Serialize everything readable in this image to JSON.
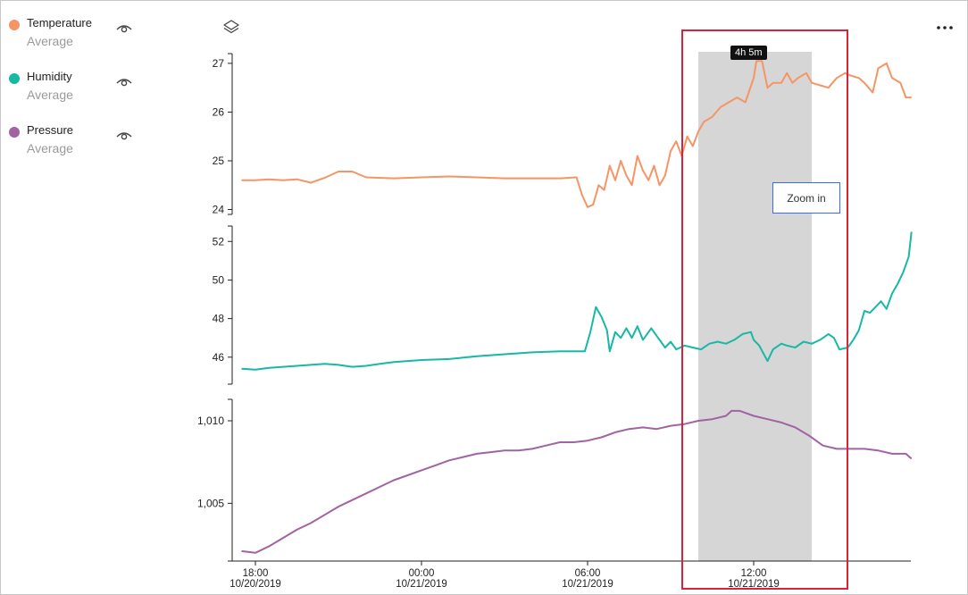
{
  "legend": {
    "items": [
      {
        "name": "Temperature",
        "sub": "Average",
        "color": "#f59565"
      },
      {
        "name": "Humidity",
        "sub": "Average",
        "color": "#17b8a6"
      },
      {
        "name": "Pressure",
        "sub": "Average",
        "color": "#a163a3"
      }
    ]
  },
  "toolbar": {
    "layers_icon": "layers-icon",
    "more_icon": "more-icon"
  },
  "selection": {
    "duration_badge": "4h 5m",
    "zoom_button": "Zoom in"
  },
  "colors": {
    "selection_fill": "#d6d6d6",
    "highlight_border": "#d9233b",
    "zoom_border": "#3a6fd8"
  },
  "chart_data": {
    "type": "line",
    "x_ticks": [
      {
        "time": "18:00",
        "date": "10/20/2019",
        "hours": 0
      },
      {
        "time": "00:00",
        "date": "10/21/2019",
        "hours": 6
      },
      {
        "time": "06:00",
        "date": "10/21/2019",
        "hours": 12
      },
      {
        "time": "12:00",
        "date": "10/21/2019",
        "hours": 18
      }
    ],
    "x_range_hours": [
      -0.5,
      23.7
    ],
    "selection_hours": [
      16.0,
      20.1
    ],
    "series": [
      {
        "name": "Temperature",
        "color": "#f59565",
        "ylim": [
          23.9,
          27.2
        ],
        "ticks": [
          24,
          25,
          26,
          27
        ],
        "tick_labels": [
          "24",
          "25",
          "26",
          "27"
        ],
        "points": [
          [
            -0.5,
            24.6
          ],
          [
            0,
            24.6
          ],
          [
            0.5,
            24.62
          ],
          [
            1,
            24.6
          ],
          [
            1.5,
            24.62
          ],
          [
            2,
            24.55
          ],
          [
            2.5,
            24.65
          ],
          [
            3,
            24.78
          ],
          [
            3.5,
            24.78
          ],
          [
            4,
            24.66
          ],
          [
            5,
            24.64
          ],
          [
            6,
            24.66
          ],
          [
            7,
            24.68
          ],
          [
            8,
            24.66
          ],
          [
            9,
            24.64
          ],
          [
            10,
            24.64
          ],
          [
            11,
            24.64
          ],
          [
            11.6,
            24.66
          ],
          [
            11.8,
            24.3
          ],
          [
            12,
            24.05
          ],
          [
            12.2,
            24.1
          ],
          [
            12.4,
            24.5
          ],
          [
            12.6,
            24.4
          ],
          [
            12.8,
            24.9
          ],
          [
            13,
            24.6
          ],
          [
            13.2,
            25.0
          ],
          [
            13.4,
            24.7
          ],
          [
            13.6,
            24.5
          ],
          [
            13.8,
            25.1
          ],
          [
            14.0,
            24.8
          ],
          [
            14.2,
            24.6
          ],
          [
            14.4,
            24.9
          ],
          [
            14.6,
            24.5
          ],
          [
            14.8,
            24.7
          ],
          [
            15.0,
            25.2
          ],
          [
            15.2,
            25.4
          ],
          [
            15.4,
            25.1
          ],
          [
            15.6,
            25.5
          ],
          [
            15.8,
            25.3
          ],
          [
            16.0,
            25.6
          ],
          [
            16.2,
            25.8
          ],
          [
            16.5,
            25.9
          ],
          [
            16.8,
            26.1
          ],
          [
            17.1,
            26.2
          ],
          [
            17.4,
            26.3
          ],
          [
            17.7,
            26.2
          ],
          [
            18.0,
            26.7
          ],
          [
            18.1,
            27.05
          ],
          [
            18.3,
            27.05
          ],
          [
            18.5,
            26.5
          ],
          [
            18.7,
            26.6
          ],
          [
            19.0,
            26.6
          ],
          [
            19.2,
            26.8
          ],
          [
            19.4,
            26.6
          ],
          [
            19.6,
            26.7
          ],
          [
            19.9,
            26.8
          ],
          [
            20.1,
            26.6
          ],
          [
            20.4,
            26.55
          ],
          [
            20.7,
            26.5
          ],
          [
            21.0,
            26.7
          ],
          [
            21.3,
            26.8
          ],
          [
            21.5,
            26.75
          ],
          [
            21.8,
            26.7
          ],
          [
            22.0,
            26.6
          ],
          [
            22.3,
            26.4
          ],
          [
            22.5,
            26.9
          ],
          [
            22.8,
            27.0
          ],
          [
            23.0,
            26.7
          ],
          [
            23.3,
            26.6
          ],
          [
            23.5,
            26.3
          ],
          [
            23.7,
            26.3
          ]
        ]
      },
      {
        "name": "Humidity",
        "color": "#17b8a6",
        "ylim": [
          44.6,
          52.8
        ],
        "ticks": [
          46,
          48,
          50,
          52
        ],
        "tick_labels": [
          "46",
          "48",
          "50",
          "52"
        ],
        "points": [
          [
            -0.5,
            45.4
          ],
          [
            0,
            45.35
          ],
          [
            0.5,
            45.45
          ],
          [
            1,
            45.5
          ],
          [
            1.5,
            45.55
          ],
          [
            2,
            45.6
          ],
          [
            2.5,
            45.65
          ],
          [
            3,
            45.6
          ],
          [
            3.5,
            45.5
          ],
          [
            4,
            45.55
          ],
          [
            4.5,
            45.65
          ],
          [
            5,
            45.75
          ],
          [
            6,
            45.85
          ],
          [
            7,
            45.9
          ],
          [
            8,
            46.05
          ],
          [
            9,
            46.15
          ],
          [
            10,
            46.25
          ],
          [
            11,
            46.3
          ],
          [
            11.9,
            46.3
          ],
          [
            12.1,
            47.3
          ],
          [
            12.3,
            48.6
          ],
          [
            12.5,
            48.1
          ],
          [
            12.7,
            47.4
          ],
          [
            12.8,
            46.3
          ],
          [
            13.0,
            47.3
          ],
          [
            13.2,
            47.0
          ],
          [
            13.4,
            47.5
          ],
          [
            13.6,
            47.0
          ],
          [
            13.8,
            47.6
          ],
          [
            14.0,
            46.9
          ],
          [
            14.3,
            47.5
          ],
          [
            14.6,
            46.9
          ],
          [
            14.8,
            46.5
          ],
          [
            15.0,
            46.8
          ],
          [
            15.2,
            46.4
          ],
          [
            15.5,
            46.6
          ],
          [
            15.8,
            46.5
          ],
          [
            16.1,
            46.4
          ],
          [
            16.4,
            46.7
          ],
          [
            16.7,
            46.8
          ],
          [
            17.0,
            46.7
          ],
          [
            17.3,
            46.9
          ],
          [
            17.6,
            47.2
          ],
          [
            17.9,
            47.3
          ],
          [
            18.0,
            46.9
          ],
          [
            18.2,
            46.6
          ],
          [
            18.5,
            45.8
          ],
          [
            18.7,
            46.4
          ],
          [
            19.0,
            46.7
          ],
          [
            19.2,
            46.6
          ],
          [
            19.5,
            46.5
          ],
          [
            19.8,
            46.8
          ],
          [
            20.1,
            46.7
          ],
          [
            20.4,
            46.9
          ],
          [
            20.7,
            47.2
          ],
          [
            20.9,
            47.0
          ],
          [
            21.1,
            46.4
          ],
          [
            21.4,
            46.5
          ],
          [
            21.6,
            46.9
          ],
          [
            21.8,
            47.4
          ],
          [
            22.0,
            48.4
          ],
          [
            22.2,
            48.3
          ],
          [
            22.4,
            48.6
          ],
          [
            22.6,
            48.9
          ],
          [
            22.8,
            48.5
          ],
          [
            23.0,
            49.3
          ],
          [
            23.2,
            49.8
          ],
          [
            23.4,
            50.4
          ],
          [
            23.6,
            51.2
          ],
          [
            23.7,
            52.5
          ]
        ]
      },
      {
        "name": "Pressure",
        "color": "#a163a3",
        "ylim": [
          1001.5,
          1011.3
        ],
        "ticks": [
          1005,
          1010
        ],
        "tick_labels": [
          "1,005",
          "1,010"
        ],
        "points": [
          [
            -0.5,
            1002.1
          ],
          [
            0,
            1002.0
          ],
          [
            0.5,
            1002.4
          ],
          [
            1,
            1002.9
          ],
          [
            1.5,
            1003.4
          ],
          [
            2,
            1003.8
          ],
          [
            2.5,
            1004.3
          ],
          [
            3,
            1004.8
          ],
          [
            3.5,
            1005.2
          ],
          [
            4,
            1005.6
          ],
          [
            4.5,
            1006.0
          ],
          [
            5,
            1006.4
          ],
          [
            5.5,
            1006.7
          ],
          [
            6,
            1007.0
          ],
          [
            6.5,
            1007.3
          ],
          [
            7,
            1007.6
          ],
          [
            7.5,
            1007.8
          ],
          [
            8,
            1008.0
          ],
          [
            8.5,
            1008.1
          ],
          [
            9,
            1008.2
          ],
          [
            9.5,
            1008.2
          ],
          [
            10,
            1008.3
          ],
          [
            10.5,
            1008.5
          ],
          [
            11,
            1008.7
          ],
          [
            11.5,
            1008.7
          ],
          [
            12,
            1008.8
          ],
          [
            12.5,
            1009.0
          ],
          [
            13,
            1009.3
          ],
          [
            13.5,
            1009.5
          ],
          [
            14,
            1009.6
          ],
          [
            14.5,
            1009.5
          ],
          [
            15,
            1009.7
          ],
          [
            15.5,
            1009.8
          ],
          [
            16,
            1010.0
          ],
          [
            16.5,
            1010.1
          ],
          [
            17,
            1010.3
          ],
          [
            17.2,
            1010.6
          ],
          [
            17.5,
            1010.6
          ],
          [
            18,
            1010.3
          ],
          [
            18.5,
            1010.1
          ],
          [
            19,
            1009.9
          ],
          [
            19.5,
            1009.6
          ],
          [
            20,
            1009.1
          ],
          [
            20.5,
            1008.5
          ],
          [
            21,
            1008.3
          ],
          [
            21.5,
            1008.3
          ],
          [
            22,
            1008.3
          ],
          [
            22.5,
            1008.2
          ],
          [
            23,
            1008.0
          ],
          [
            23.5,
            1008.0
          ],
          [
            23.7,
            1007.7
          ]
        ]
      }
    ]
  }
}
